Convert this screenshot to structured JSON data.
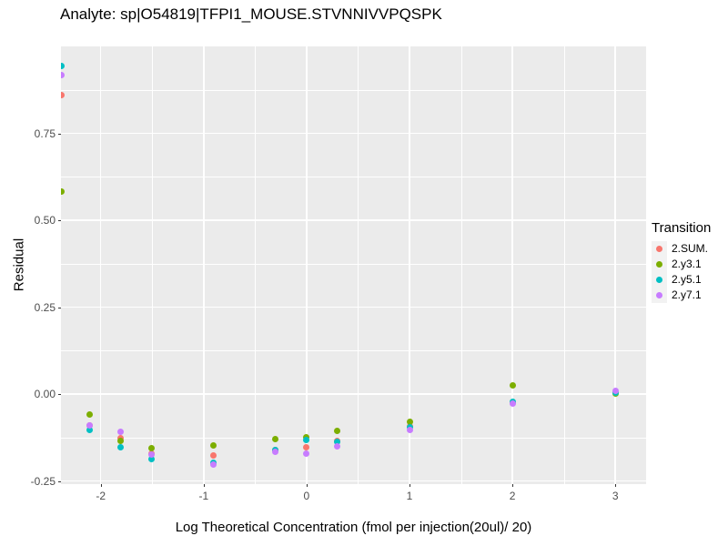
{
  "title": "Analyte: sp|O54819|TFPI1_MOUSE.STVNNIVVPQSPK",
  "chart_data": {
    "type": "scatter",
    "title": "Analyte: sp|O54819|TFPI1_MOUSE.STVNNIVVPQSPK",
    "xlabel": "Log Theoretical Concentration (fmol per injection(20ul)/ 20)",
    "ylabel": "Residual",
    "xlim": [
      -2.408,
      3.3
    ],
    "ylim": [
      -0.259,
      1.0
    ],
    "grid": true,
    "x_ticks": [
      -2,
      -1,
      0,
      1,
      2,
      3
    ],
    "x_tick_labels": [
      "-2",
      "-1",
      "0",
      "1",
      "2",
      "3"
    ],
    "y_ticks": [
      -0.25,
      0.0,
      0.25,
      0.5,
      0.75
    ],
    "y_tick_labels": [
      "-0.25",
      "0.00",
      "0.25",
      "0.50",
      "0.75"
    ],
    "legend_title": "Transition",
    "legend_position": "right",
    "x": [
      -2.408,
      -2.107,
      -1.806,
      -1.505,
      -0.903,
      -0.301,
      0.0,
      0.301,
      1.0,
      2.0,
      3.0
    ],
    "series": [
      {
        "name": "2.SUM.",
        "color": "#F8766D",
        "values": [
          0.86,
          -0.091,
          -0.127,
          -0.172,
          -0.177,
          -0.162,
          -0.154,
          -0.136,
          -0.092,
          -0.025,
          0.004
        ]
      },
      {
        "name": "2.y3.1",
        "color": "#7CAE00",
        "values": [
          0.582,
          -0.058,
          -0.136,
          -0.155,
          -0.147,
          -0.13,
          -0.125,
          -0.105,
          -0.079,
          0.024,
          0.002
        ]
      },
      {
        "name": "2.y5.1",
        "color": "#00BFC4",
        "values": [
          0.944,
          -0.103,
          -0.154,
          -0.188,
          -0.198,
          -0.16,
          -0.132,
          -0.138,
          -0.096,
          -0.023,
          0.004
        ]
      },
      {
        "name": "2.y7.1",
        "color": "#C77CFF",
        "values": [
          0.918,
          -0.09,
          -0.108,
          -0.174,
          -0.203,
          -0.167,
          -0.171,
          -0.151,
          -0.104,
          -0.027,
          0.01
        ]
      }
    ]
  }
}
